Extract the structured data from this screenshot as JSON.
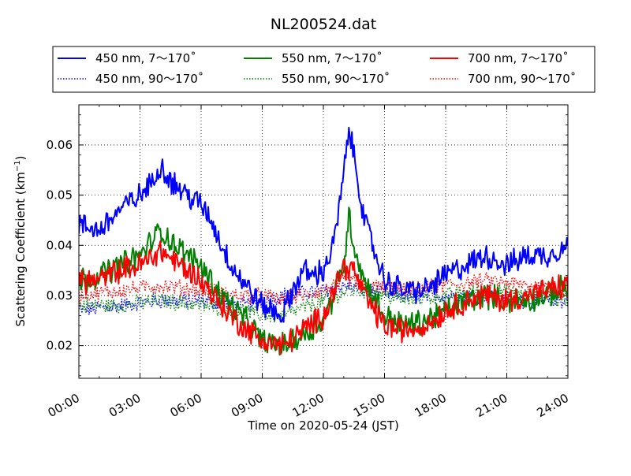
{
  "chart_data": {
    "type": "line",
    "title": "NL200524.dat",
    "xlabel": "Time on 2020-05-24 (JST)",
    "ylabel": "Scattering Coefficient (km",
    "ylabel_sup": "−1",
    "ylabel_close": ")",
    "xlim": [
      "00:00",
      "24:00"
    ],
    "ylim": [
      0.0135,
      0.068
    ],
    "x_ticks": [
      "00:00",
      "03:00",
      "06:00",
      "09:00",
      "12:00",
      "15:00",
      "18:00",
      "21:00",
      "24:00"
    ],
    "y_ticks": [
      "0.02",
      "0.03",
      "0.04",
      "0.05",
      "0.06"
    ],
    "y_tick_values": [
      0.02,
      0.03,
      0.04,
      0.05,
      0.06
    ],
    "grid": true,
    "legend_position": "top, outside plot, 3 columns",
    "series": [
      {
        "name": "450 nm, 7～170˚",
        "color": "#0000ff",
        "style": "solid",
        "x": [
          "00:00",
          "01:00",
          "02:00",
          "03:00",
          "03:30",
          "04:00",
          "04:30",
          "05:00",
          "06:00",
          "06:30",
          "07:00",
          "07:30",
          "08:00",
          "09:00",
          "10:00",
          "10:30",
          "11:00",
          "11:30",
          "12:00",
          "12:30",
          "13:00",
          "13:15",
          "13:30",
          "13:45",
          "14:00",
          "14:30",
          "15:00",
          "16:00",
          "17:00",
          "18:00",
          "19:00",
          "20:00",
          "21:00",
          "22:00",
          "23:00",
          "24:00"
        ],
        "values": [
          0.044,
          0.043,
          0.047,
          0.05,
          0.052,
          0.056,
          0.053,
          0.051,
          0.048,
          0.045,
          0.04,
          0.036,
          0.033,
          0.028,
          0.026,
          0.031,
          0.035,
          0.034,
          0.035,
          0.04,
          0.054,
          0.063,
          0.058,
          0.052,
          0.045,
          0.039,
          0.033,
          0.031,
          0.031,
          0.034,
          0.036,
          0.038,
          0.036,
          0.038,
          0.038,
          0.04
        ]
      },
      {
        "name": "450 nm, 90～170˚",
        "color": "#0000ff",
        "style": "dotted",
        "x": [
          "00:00",
          "02:00",
          "04:00",
          "06:00",
          "08:00",
          "09:00",
          "10:00",
          "12:00",
          "13:15",
          "14:00",
          "16:00",
          "18:00",
          "20:00",
          "22:00",
          "24:00"
        ],
        "values": [
          0.027,
          0.028,
          0.029,
          0.029,
          0.028,
          0.029,
          0.03,
          0.031,
          0.032,
          0.031,
          0.03,
          0.03,
          0.03,
          0.029,
          0.029
        ]
      },
      {
        "name": "550 nm, 7～170˚",
        "color": "#008000",
        "style": "solid",
        "x": [
          "00:00",
          "01:00",
          "02:00",
          "03:00",
          "04:00",
          "04:30",
          "05:00",
          "06:00",
          "07:00",
          "08:00",
          "09:00",
          "10:00",
          "11:00",
          "12:00",
          "12:30",
          "13:00",
          "13:15",
          "13:30",
          "14:00",
          "15:00",
          "16:00",
          "17:00",
          "18:00",
          "19:00",
          "20:00",
          "21:00",
          "22:00",
          "23:00",
          "24:00"
        ],
        "values": [
          0.033,
          0.034,
          0.036,
          0.038,
          0.043,
          0.041,
          0.039,
          0.036,
          0.03,
          0.026,
          0.021,
          0.02,
          0.022,
          0.025,
          0.03,
          0.036,
          0.046,
          0.04,
          0.033,
          0.026,
          0.024,
          0.025,
          0.027,
          0.029,
          0.03,
          0.029,
          0.029,
          0.03,
          0.032
        ]
      },
      {
        "name": "550 nm, 90～170˚",
        "color": "#008000",
        "style": "dotted",
        "x": [
          "00:00",
          "02:00",
          "04:00",
          "06:00",
          "08:00",
          "09:00",
          "10:00",
          "12:00",
          "13:15",
          "14:00",
          "16:00",
          "18:00",
          "20:00",
          "22:00",
          "24:00"
        ],
        "values": [
          0.028,
          0.028,
          0.029,
          0.028,
          0.027,
          0.026,
          0.026,
          0.029,
          0.031,
          0.031,
          0.029,
          0.03,
          0.031,
          0.03,
          0.029
        ]
      },
      {
        "name": "700 nm, 7～170˚",
        "color": "#ff0000",
        "style": "solid",
        "x": [
          "00:00",
          "01:00",
          "02:00",
          "03:00",
          "04:00",
          "05:00",
          "06:00",
          "07:00",
          "08:00",
          "09:00",
          "10:00",
          "11:00",
          "12:00",
          "12:30",
          "13:00",
          "13:30",
          "14:00",
          "15:00",
          "16:00",
          "17:00",
          "18:00",
          "19:00",
          "20:00",
          "21:00",
          "22:00",
          "23:00",
          "24:00"
        ],
        "values": [
          0.033,
          0.033,
          0.035,
          0.036,
          0.039,
          0.036,
          0.033,
          0.028,
          0.024,
          0.021,
          0.02,
          0.023,
          0.026,
          0.031,
          0.036,
          0.035,
          0.03,
          0.024,
          0.023,
          0.024,
          0.027,
          0.029,
          0.03,
          0.029,
          0.03,
          0.031,
          0.032
        ]
      },
      {
        "name": "700 nm, 90～170˚",
        "color": "#ff0000",
        "style": "dotted",
        "x": [
          "00:00",
          "02:00",
          "04:00",
          "06:00",
          "08:00",
          "09:00",
          "10:00",
          "12:00",
          "13:15",
          "14:00",
          "16:00",
          "18:00",
          "20:00",
          "22:00",
          "24:00"
        ],
        "values": [
          0.03,
          0.031,
          0.032,
          0.031,
          0.03,
          0.03,
          0.029,
          0.031,
          0.033,
          0.032,
          0.031,
          0.032,
          0.033,
          0.032,
          0.031
        ]
      }
    ]
  }
}
